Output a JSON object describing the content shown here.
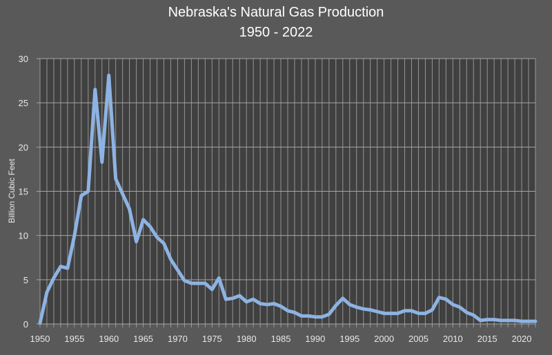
{
  "chart_data": {
    "type": "line",
    "title": "Nebraska's Natural Gas Production",
    "subtitle": "1950 - 2022",
    "xlabel": "",
    "ylabel": "Billion Cubic Feet",
    "ylim": [
      0,
      30
    ],
    "xlim": [
      1950,
      2022
    ],
    "yticks": [
      0,
      5,
      10,
      15,
      20,
      25,
      30
    ],
    "xticks": [
      1950,
      1955,
      1960,
      1965,
      1970,
      1975,
      1980,
      1985,
      1990,
      1995,
      2000,
      2005,
      2010,
      2015,
      2020
    ],
    "grid": true,
    "legend": "none",
    "series": [
      {
        "name": "Natural Gas Production",
        "color": "#8db3e2",
        "x": [
          1950,
          1951,
          1952,
          1953,
          1954,
          1955,
          1956,
          1957,
          1958,
          1959,
          1960,
          1961,
          1962,
          1963,
          1964,
          1965,
          1966,
          1967,
          1968,
          1969,
          1970,
          1971,
          1972,
          1973,
          1974,
          1975,
          1976,
          1977,
          1978,
          1979,
          1980,
          1981,
          1982,
          1983,
          1984,
          1985,
          1986,
          1987,
          1988,
          1989,
          1990,
          1991,
          1992,
          1993,
          1994,
          1995,
          1996,
          1997,
          1998,
          1999,
          2000,
          2001,
          2002,
          2003,
          2004,
          2005,
          2006,
          2007,
          2008,
          2009,
          2010,
          2011,
          2012,
          2013,
          2014,
          2015,
          2016,
          2017,
          2018,
          2019,
          2020,
          2021,
          2022
        ],
        "values": [
          0.1,
          3.6,
          5.2,
          6.5,
          6.3,
          10.0,
          14.5,
          15.0,
          26.5,
          18.3,
          28.1,
          16.4,
          14.7,
          13.0,
          9.3,
          11.8,
          11.0,
          9.8,
          9.1,
          7.3,
          6.1,
          4.9,
          4.6,
          4.6,
          4.6,
          3.9,
          5.2,
          2.8,
          2.9,
          3.2,
          2.5,
          2.8,
          2.3,
          2.2,
          2.3,
          2.0,
          1.5,
          1.3,
          0.9,
          0.9,
          0.8,
          0.8,
          1.1,
          2.1,
          2.9,
          2.2,
          1.9,
          1.7,
          1.6,
          1.4,
          1.2,
          1.2,
          1.2,
          1.5,
          1.5,
          1.2,
          1.2,
          1.6,
          3.0,
          2.8,
          2.2,
          1.9,
          1.3,
          1.0,
          0.4,
          0.5,
          0.5,
          0.4,
          0.4,
          0.4,
          0.3,
          0.3,
          0.3
        ]
      }
    ]
  },
  "colors": {
    "background": "#595959",
    "plot_background": "#404040",
    "grid": "#a6a6a6",
    "line": "#8db3e2",
    "text": "#ffffff"
  }
}
